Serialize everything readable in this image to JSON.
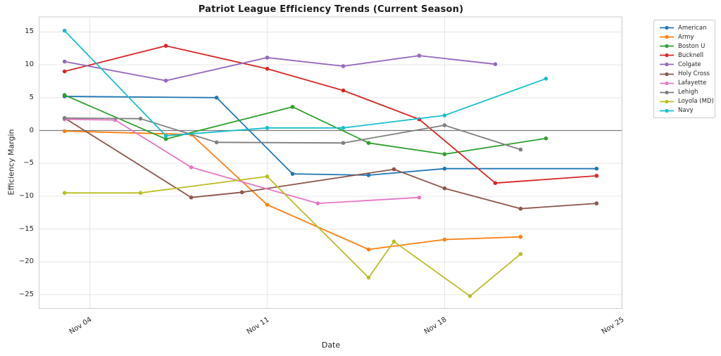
{
  "window": {
    "kind": "matplotlib-style line chart figure",
    "background": "#ffffff"
  },
  "chart_data": {
    "type": "line",
    "title": "Patriot League Efficiency Trends (Current Season)",
    "xlabel": "Date",
    "ylabel": "Efficiency Margin",
    "x_unit": "day of November (current season)",
    "x_tick_labels": [
      "Nov 04",
      "Nov 11",
      "Nov 18",
      "Nov 25"
    ],
    "x_tick_days": [
      4,
      11,
      18,
      25
    ],
    "y_ticks": [
      15,
      10,
      5,
      0,
      -5,
      -10,
      -15,
      -20,
      -25
    ],
    "x_domain_days": [
      2.0,
      25.0
    ],
    "y_domain": [
      -27.1,
      17.3
    ],
    "grid": true,
    "zero_line": true,
    "grid_color": "#e6e6e6",
    "spine_color": "#cccccc",
    "zero_line_color": "#7a7a7a",
    "legend_position": "outside-upper-right",
    "series": [
      {
        "name": "American",
        "color": "#1f77b4",
        "points": [
          [
            3,
            5.2
          ],
          [
            9,
            5.0
          ],
          [
            12,
            -6.6
          ],
          [
            15,
            -6.8
          ],
          [
            18,
            -5.8
          ],
          [
            24,
            -5.8
          ]
        ]
      },
      {
        "name": "Army",
        "color": "#ff7f0e",
        "points": [
          [
            3,
            -0.1
          ],
          [
            8,
            -0.6
          ],
          [
            11,
            -11.3
          ],
          [
            15,
            -18.1
          ],
          [
            18,
            -16.6
          ],
          [
            21,
            -16.2
          ]
        ]
      },
      {
        "name": "Boston U",
        "color": "#2ca02c",
        "points": [
          [
            3,
            5.4
          ],
          [
            7,
            -1.3
          ],
          [
            12,
            3.6
          ],
          [
            15,
            -1.9
          ],
          [
            18,
            -3.6
          ],
          [
            22,
            -1.2
          ]
        ]
      },
      {
        "name": "Bucknell",
        "color": "#d62728",
        "points": [
          [
            3,
            9.0
          ],
          [
            7,
            12.9
          ],
          [
            11,
            9.4
          ],
          [
            14,
            6.1
          ],
          [
            17,
            1.7
          ],
          [
            20,
            -8.0
          ],
          [
            24,
            -6.9
          ]
        ]
      },
      {
        "name": "Colgate",
        "color": "#9467bd",
        "points": [
          [
            3,
            10.5
          ],
          [
            7,
            7.6
          ],
          [
            11,
            11.1
          ],
          [
            14,
            9.8
          ],
          [
            17,
            11.4
          ],
          [
            20,
            10.1
          ]
        ]
      },
      {
        "name": "Holy Cross",
        "color": "#8c564b",
        "points": [
          [
            3,
            1.9
          ],
          [
            8,
            -10.2
          ],
          [
            10,
            -9.4
          ],
          [
            16,
            -5.9
          ],
          [
            18,
            -8.8
          ],
          [
            21,
            -11.9
          ],
          [
            24,
            -11.1
          ]
        ]
      },
      {
        "name": "Lafayette",
        "color": "#e377c2",
        "points": [
          [
            3,
            1.7
          ],
          [
            5,
            1.6
          ],
          [
            8,
            -5.6
          ],
          [
            13,
            -11.1
          ],
          [
            17,
            -10.2
          ]
        ]
      },
      {
        "name": "Lehigh",
        "color": "#7f7f7f",
        "points": [
          [
            3,
            1.9
          ],
          [
            6,
            1.8
          ],
          [
            9,
            -1.8
          ],
          [
            14,
            -1.9
          ],
          [
            18,
            0.8
          ],
          [
            21,
            -2.9
          ]
        ]
      },
      {
        "name": "Loyola (MD)",
        "color": "#bcbd22",
        "points": [
          [
            3,
            -9.5
          ],
          [
            6,
            -9.5
          ],
          [
            11,
            -7.0
          ],
          [
            15,
            -22.4
          ],
          [
            16,
            -16.9
          ],
          [
            19,
            -25.2
          ],
          [
            21,
            -18.8
          ]
        ]
      },
      {
        "name": "Navy",
        "color": "#17becf",
        "points": [
          [
            3,
            15.2
          ],
          [
            7,
            -0.8
          ],
          [
            11,
            0.4
          ],
          [
            14,
            0.4
          ],
          [
            18,
            2.3
          ],
          [
            22,
            7.9
          ]
        ]
      }
    ]
  }
}
